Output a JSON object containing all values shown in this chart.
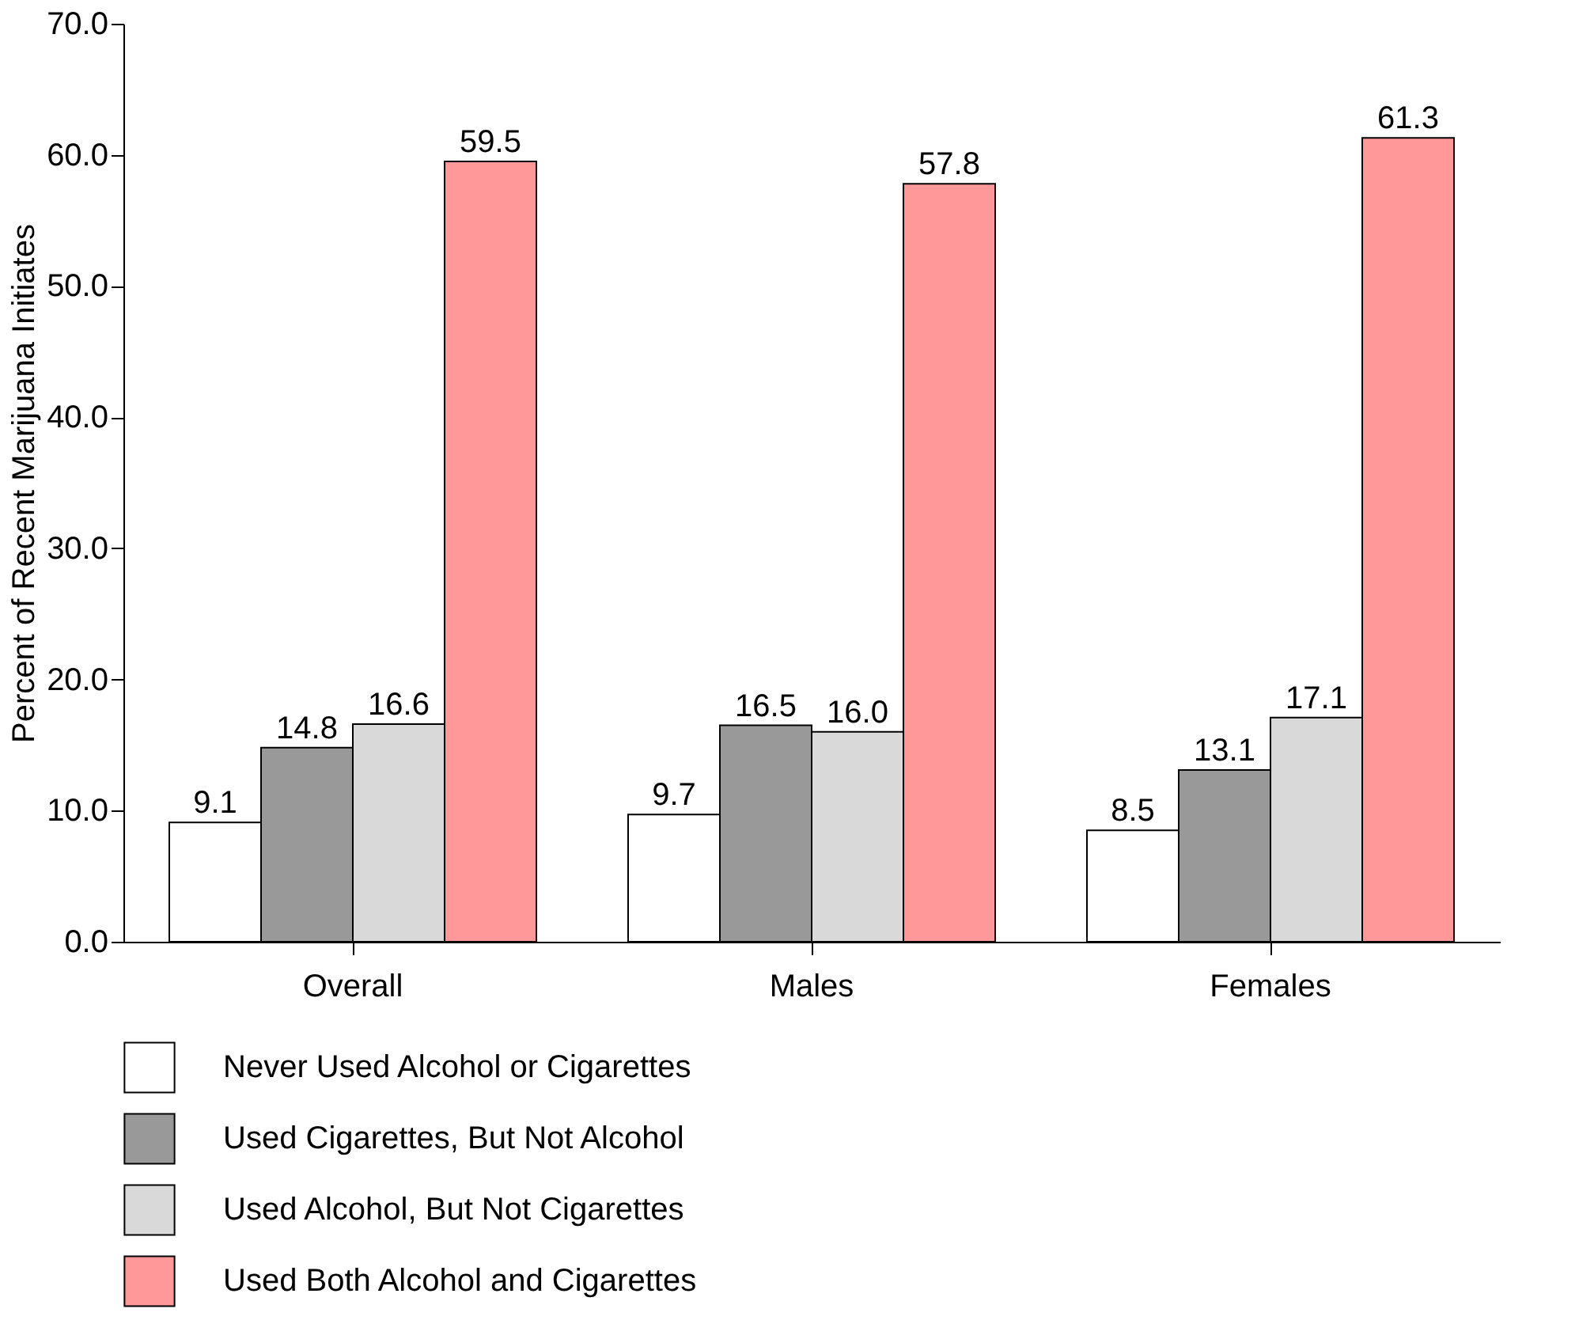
{
  "chart_data": {
    "type": "bar",
    "ylabel": "Percent of Recent Marijuana Initiates",
    "categories": [
      "Overall",
      "Males",
      "Females"
    ],
    "series": [
      {
        "name": "Never Used Alcohol or Cigarettes",
        "color": "#ffffff",
        "values": [
          9.1,
          9.7,
          8.5
        ],
        "value_labels": [
          "9.1",
          "9.7",
          "8.5"
        ]
      },
      {
        "name": "Used Cigarettes, But Not Alcohol",
        "color": "#999999",
        "values": [
          14.8,
          16.5,
          13.1
        ],
        "value_labels": [
          "14.8",
          "16.5",
          "13.1"
        ]
      },
      {
        "name": "Used Alcohol, But Not Cigarettes",
        "color": "#d9d9d9",
        "values": [
          16.6,
          16.0,
          17.1
        ],
        "value_labels": [
          "16.6",
          "16.0",
          "17.1"
        ]
      },
      {
        "name": "Used Both Alcohol and Cigarettes",
        "color": "#ff9999",
        "values": [
          59.5,
          57.8,
          61.3
        ],
        "value_labels": [
          "59.5",
          "57.8",
          "61.3"
        ]
      }
    ],
    "ylim": [
      0,
      70
    ],
    "yticks": [
      {
        "value": 0,
        "label": "0.0"
      },
      {
        "value": 10,
        "label": "10.0"
      },
      {
        "value": 20,
        "label": "20.0"
      },
      {
        "value": 30,
        "label": "30.0"
      },
      {
        "value": 40,
        "label": "40.0"
      },
      {
        "value": 50,
        "label": "50.0"
      },
      {
        "value": 60,
        "label": "60.0"
      },
      {
        "value": 70,
        "label": "70.0"
      }
    ],
    "grid": false,
    "legend": "bottom"
  }
}
